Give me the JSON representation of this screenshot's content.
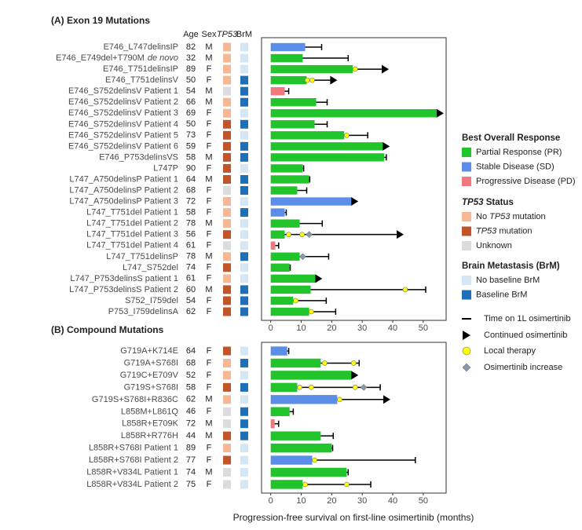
{
  "columns": [
    {
      "text": "Age"
    },
    {
      "text": "Sex"
    },
    {
      "text": "TP53",
      "italic": true
    },
    {
      "text": "BrM"
    }
  ],
  "legend": {
    "sections": [
      {
        "field": "response",
        "title": [
          {
            "text": "Best Overall Response"
          }
        ],
        "items": [
          {
            "key": "PR",
            "color": "#22c42c",
            "label": [
              {
                "text": "Partial Response (PR)"
              }
            ]
          },
          {
            "key": "SD",
            "color": "#5b8ee8",
            "label": [
              {
                "text": "Stable Disease (SD)"
              }
            ]
          },
          {
            "key": "PD",
            "color": "#f2777e",
            "label": [
              {
                "text": "Progressive Disease (PD)"
              }
            ]
          }
        ]
      },
      {
        "field": "tp53",
        "title": [
          {
            "text": "TP53",
            "italic": true
          },
          {
            "text": " Status"
          }
        ],
        "items": [
          {
            "key": "no",
            "color": "#f6b894",
            "label": [
              {
                "text": "No "
              },
              {
                "text": "TP53",
                "italic": true
              },
              {
                "text": " mutation"
              }
            ]
          },
          {
            "key": "mut",
            "color": "#c2542a",
            "label": [
              {
                "text": "TP53",
                "italic": true
              },
              {
                "text": " mutation"
              }
            ]
          },
          {
            "key": "unk",
            "color": "#dcdcdc",
            "label": [
              {
                "text": "Unknown"
              }
            ]
          }
        ]
      },
      {
        "field": "brm",
        "title": [
          {
            "text": "Brain Metastasis (BrM)"
          }
        ],
        "items": [
          {
            "key": "no",
            "color": "#d5e6f5",
            "label": [
              {
                "text": "No baseline BrM"
              }
            ]
          },
          {
            "key": "yes",
            "color": "#1f6fb6",
            "label": [
              {
                "text": "Baseline BrM"
              }
            ]
          }
        ]
      }
    ],
    "symbols": [
      {
        "key": "line",
        "color": "#000000",
        "label": "Time on 1L osimertinib"
      },
      {
        "key": "triangle",
        "color": "#000000",
        "label": "Continued osimertinib"
      },
      {
        "key": "circle",
        "color": "#ffff00",
        "label": "Local therapy"
      },
      {
        "key": "diamond",
        "color": "#8a97ad",
        "label": "Osimertinib increase"
      }
    ]
  },
  "chart_data": [
    {
      "type": "swimmer",
      "title": "(A) Exon 19 Mutations",
      "categories": [
        "E746_L747delinsIP",
        "E746_E749del+T790M",
        "E746_T751delinsIP",
        "E746_T751delinsV",
        "E746_S752delinsV Patient 1",
        "E746_S752delinsV Patient 2",
        "E746_S752delinsV Patient 3",
        "E746_S752delinsV Patient 4",
        "E746_S752delinsV Patient 5",
        "E746_S752delinsV Patient 6",
        "E746_P753delinsVS",
        "L747P",
        "L747_A750delinsP Patient 1",
        "L747_A750delinsP Patient 2",
        "L747_A750delinsP Patient 3",
        "L747_T751del Patient 1",
        "L747_T751del Patient 2",
        "L747_T751del Patient 3",
        "L747_T751del Patient 4",
        "L747_T751delinsP",
        "L747_S752del",
        "L747_P753delinsS patient 1",
        "L747_P753delinsS Patient 2",
        "S752_I759del",
        "P753_I759delinsA"
      ],
      "category_notes": [
        null,
        "de novo",
        null,
        null,
        null,
        null,
        null,
        null,
        null,
        null,
        null,
        null,
        null,
        null,
        null,
        null,
        null,
        null,
        null,
        null,
        null,
        null,
        null,
        null,
        null
      ],
      "ages": [
        82,
        32,
        89,
        50,
        54,
        66,
        69,
        50,
        73,
        59,
        58,
        90,
        64,
        68,
        72,
        58,
        78,
        56,
        61,
        78,
        74,
        61,
        60,
        54,
        62
      ],
      "sexes": [
        "M",
        "M",
        "F",
        "F",
        "M",
        "M",
        "F",
        "F",
        "F",
        "F",
        "M",
        "F",
        "M",
        "F",
        "F",
        "F",
        "M",
        "F",
        "F",
        "M",
        "F",
        "F",
        "M",
        "F",
        "F"
      ],
      "tp53": [
        "no",
        "no",
        "no",
        "no",
        "unk",
        "no",
        "no",
        "mut",
        "mut",
        "mut",
        "mut",
        "mut",
        "mut",
        "unk",
        "no",
        "no",
        "no",
        "mut",
        "unk",
        "no",
        "mut",
        "no",
        "mut",
        "mut",
        "mut"
      ],
      "brm": [
        "no",
        "no",
        "no",
        "yes",
        "yes",
        "yes",
        "no",
        "yes",
        "no",
        "yes",
        "yes",
        "no",
        "yes",
        "yes",
        "no",
        "yes",
        "no",
        "no",
        "no",
        "yes",
        "no",
        "no",
        "yes",
        "yes",
        "yes"
      ],
      "response": [
        "SD",
        "PR",
        "PR",
        "PR",
        "PD",
        "PR",
        "PR",
        "PR",
        "PR",
        "PR",
        "PR",
        "PR",
        "PR",
        "PR",
        "SD",
        "SD",
        "PR",
        "PR",
        "PD",
        "PR",
        "PR",
        "PR",
        "PR",
        "PR",
        "PR"
      ],
      "values": [
        11.3,
        10.5,
        26.9,
        11.8,
        4.6,
        14.9,
        54.4,
        14.4,
        24.1,
        36.7,
        37.2,
        10.5,
        12.6,
        8.7,
        26.4,
        4.6,
        9.5,
        4.6,
        1.5,
        9.5,
        6.2,
        14.6,
        13.1,
        7.4,
        12.6
      ],
      "time_on_osimertinib": [
        16.7,
        25.4,
        36.4,
        19.5,
        5.9,
        18.5,
        54.4,
        18.5,
        31.8,
        36.7,
        37.9,
        10.8,
        12.8,
        11.8,
        26.4,
        5.1,
        16.9,
        41.3,
        2.6,
        19,
        6.4,
        14.6,
        50.8,
        18.2,
        21.3
      ],
      "continued": [
        false,
        false,
        true,
        true,
        false,
        false,
        true,
        false,
        false,
        true,
        false,
        false,
        false,
        false,
        true,
        false,
        false,
        true,
        false,
        false,
        false,
        true,
        false,
        false,
        false
      ],
      "local_therapy": [
        [],
        [],
        [
          27.7
        ],
        [
          12,
          13.6
        ],
        [],
        [],
        [],
        [],
        [
          24.9
        ],
        [],
        [],
        [],
        [],
        [],
        [],
        [],
        [],
        [
          5.9,
          10.3
        ],
        [],
        [],
        [],
        [],
        [
          44.1
        ],
        [
          8.2
        ],
        [
          13.3
        ]
      ],
      "osimertinib_increase": [
        [],
        [],
        [],
        [],
        [],
        [],
        [],
        [],
        [],
        [],
        [],
        [],
        [],
        [],
        [],
        [],
        [],
        [
          12.6
        ],
        [],
        [
          10.5
        ],
        [],
        [],
        [],
        [],
        []
      ],
      "xlim": [
        -3,
        57.5
      ],
      "xticks": [
        0,
        10,
        20,
        30,
        40,
        50
      ]
    },
    {
      "type": "swimmer",
      "title": "(B) Compound Mutations",
      "categories": [
        "G719A+K714E",
        "G719A+S768I",
        "G719C+E709V",
        "G719S+S768I",
        "G719S+S768I+R836C",
        "L858M+L861Q",
        "L858R+E709K",
        "L858R+R776H",
        "L858R+S768I Patient 1",
        "L858R+S768I Patient 2",
        "L858R+V834L Patient 1",
        "L858R+V834L Patient 2"
      ],
      "ages": [
        64,
        68,
        52,
        58,
        62,
        46,
        72,
        44,
        89,
        77,
        74,
        75
      ],
      "sexes": [
        "F",
        "F",
        "F",
        "F",
        "M",
        "F",
        "M",
        "M",
        "F",
        "F",
        "M",
        "F"
      ],
      "tp53": [
        "mut",
        "no",
        "no",
        "mut",
        "no",
        "unk",
        "unk",
        "mut",
        "no",
        "mut",
        "unk",
        "unk"
      ],
      "brm": [
        "no",
        "yes",
        "no",
        "yes",
        "no",
        "yes",
        "yes",
        "yes",
        "no",
        "no",
        "no",
        "no"
      ],
      "response": [
        "SD",
        "PR",
        "PR",
        "PR",
        "SD",
        "PR",
        "PD",
        "PR",
        "PR",
        "SD",
        "PR",
        "PR"
      ],
      "values": [
        5.4,
        16.4,
        26.4,
        8.7,
        21.8,
        6.2,
        1.3,
        16.4,
        20,
        13.6,
        24.9,
        10.5
      ],
      "time_on_osimertinib": [
        5.9,
        29,
        26.4,
        35.9,
        36.9,
        7.4,
        2.6,
        20.5,
        20.3,
        47.4,
        25.4,
        32.8
      ],
      "continued": [
        false,
        false,
        true,
        false,
        true,
        false,
        false,
        false,
        false,
        false,
        false,
        false
      ],
      "local_therapy": [
        [],
        [
          17.7,
          27.2
        ],
        [],
        [
          9.5,
          13.3,
          27.7
        ],
        [
          22.6
        ],
        [],
        [],
        [],
        [],
        [
          14.4
        ],
        [],
        [
          11.3,
          24.9
        ]
      ],
      "osimertinib_increase": [
        [],
        [],
        [],
        [
          30.5
        ],
        [],
        [],
        [],
        [],
        [],
        [],
        [],
        []
      ],
      "xlim": [
        -3,
        57.5
      ],
      "xticks": [
        0,
        10,
        20,
        30,
        40,
        50
      ],
      "x_label": "Progression-free survival on first-line osimertinib (months)"
    }
  ]
}
